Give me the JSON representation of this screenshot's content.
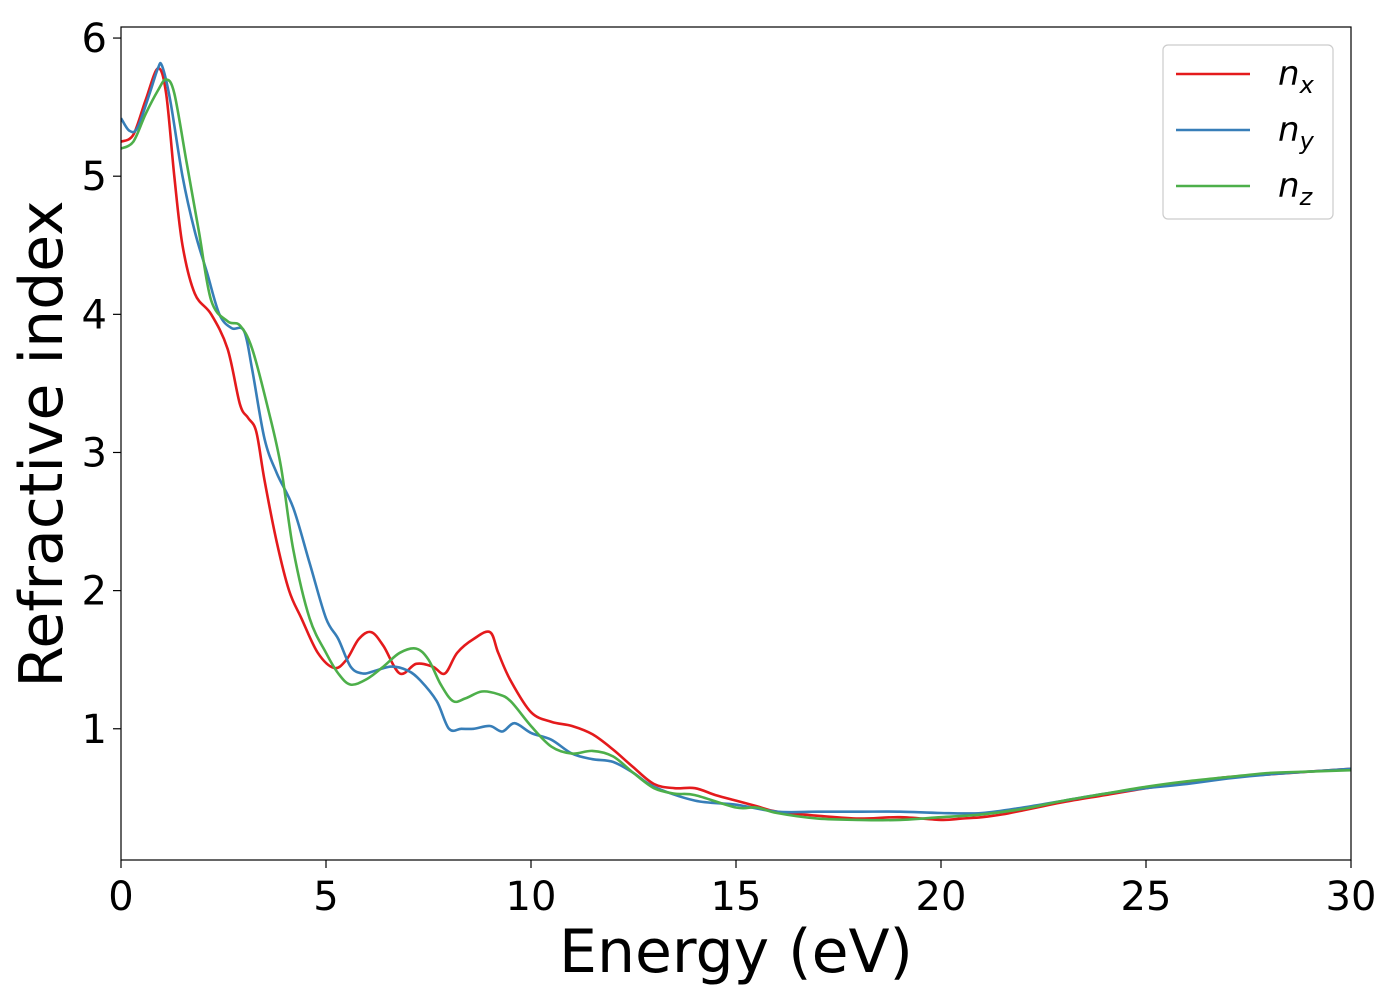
{
  "chart_data": {
    "type": "line",
    "title": "",
    "xlabel": "Energy (eV)",
    "ylabel": "Refractive index",
    "xlim": [
      0,
      30
    ],
    "ylim": [
      0.05,
      6.08
    ],
    "xticks": [
      0,
      5,
      10,
      15,
      20,
      25,
      30
    ],
    "yticks": [
      1,
      2,
      3,
      4,
      5,
      6
    ],
    "grid": false,
    "legend_position": "top-right",
    "series": [
      {
        "name": "n",
        "subscript": "x",
        "color": "#e41a1c",
        "x": [
          0,
          0.3,
          0.6,
          0.9,
          1.1,
          1.3,
          1.5,
          1.8,
          2.2,
          2.6,
          2.9,
          3.1,
          3.3,
          3.5,
          3.8,
          4.1,
          4.4,
          4.8,
          5.2,
          5.5,
          5.8,
          6.1,
          6.4,
          6.8,
          7.2,
          7.6,
          7.9,
          8.2,
          8.6,
          9.0,
          9.2,
          9.5,
          10.0,
          10.5,
          11.0,
          11.5,
          12.0,
          12.5,
          13.0,
          13.5,
          14.0,
          14.5,
          15.0,
          15.5,
          16.0,
          17.0,
          18.0,
          19.0,
          20.0,
          20.5,
          21.0,
          21.5,
          22.0,
          22.5,
          23.0,
          24.0,
          25.0,
          26.0,
          27.0,
          28.0,
          29.0,
          30.0
        ],
        "y": [
          5.25,
          5.3,
          5.55,
          5.78,
          5.6,
          5.0,
          4.5,
          4.15,
          4.0,
          3.75,
          3.35,
          3.25,
          3.15,
          2.8,
          2.35,
          2.0,
          1.8,
          1.55,
          1.44,
          1.5,
          1.65,
          1.7,
          1.6,
          1.4,
          1.47,
          1.45,
          1.4,
          1.55,
          1.65,
          1.7,
          1.55,
          1.35,
          1.12,
          1.05,
          1.02,
          0.96,
          0.85,
          0.72,
          0.6,
          0.57,
          0.57,
          0.52,
          0.48,
          0.44,
          0.4,
          0.37,
          0.35,
          0.36,
          0.34,
          0.35,
          0.36,
          0.38,
          0.41,
          0.44,
          0.47,
          0.52,
          0.57,
          0.61,
          0.65,
          0.67,
          0.69,
          0.71
        ]
      },
      {
        "name": "n",
        "subscript": "y",
        "color": "#377eb8",
        "x": [
          0,
          0.2,
          0.4,
          0.7,
          0.9,
          1.0,
          1.2,
          1.5,
          1.8,
          2.1,
          2.4,
          2.7,
          3.0,
          3.2,
          3.5,
          3.8,
          4.2,
          4.6,
          5.0,
          5.3,
          5.6,
          5.9,
          6.2,
          6.6,
          7.0,
          7.3,
          7.7,
          8.0,
          8.3,
          8.6,
          9.0,
          9.3,
          9.6,
          10.0,
          10.5,
          11.0,
          11.5,
          12.0,
          12.5,
          13.0,
          14.0,
          15.0,
          16.0,
          17.0,
          18.0,
          19.0,
          20.0,
          21.0,
          22.0,
          23.0,
          24.0,
          25.0,
          26.0,
          27.0,
          28.0,
          29.0,
          30.0
        ],
        "y": [
          5.42,
          5.33,
          5.35,
          5.6,
          5.78,
          5.8,
          5.55,
          5.0,
          4.6,
          4.3,
          4.0,
          3.9,
          3.88,
          3.6,
          3.1,
          2.85,
          2.6,
          2.2,
          1.8,
          1.65,
          1.45,
          1.4,
          1.42,
          1.45,
          1.42,
          1.35,
          1.2,
          1.0,
          1.0,
          1.0,
          1.02,
          0.98,
          1.04,
          0.97,
          0.92,
          0.82,
          0.78,
          0.76,
          0.68,
          0.58,
          0.48,
          0.45,
          0.4,
          0.4,
          0.4,
          0.4,
          0.39,
          0.39,
          0.43,
          0.48,
          0.53,
          0.57,
          0.6,
          0.64,
          0.67,
          0.69,
          0.71
        ]
      },
      {
        "name": "n",
        "subscript": "z",
        "color": "#4daf4a",
        "x": [
          0,
          0.3,
          0.6,
          0.9,
          1.1,
          1.3,
          1.6,
          1.9,
          2.2,
          2.6,
          2.9,
          3.2,
          3.6,
          3.9,
          4.2,
          4.6,
          5.0,
          5.3,
          5.6,
          6.0,
          6.4,
          6.8,
          7.2,
          7.5,
          7.8,
          8.1,
          8.4,
          8.8,
          9.2,
          9.5,
          10.0,
          10.5,
          11.0,
          11.5,
          12.0,
          12.5,
          13.0,
          13.5,
          14.0,
          15.0,
          15.5,
          16.0,
          17.0,
          18.0,
          19.0,
          20.0,
          21.0,
          22.0,
          23.0,
          24.0,
          25.0,
          26.0,
          27.0,
          28.0,
          29.0,
          30.0
        ],
        "y": [
          5.2,
          5.25,
          5.45,
          5.62,
          5.7,
          5.6,
          5.1,
          4.6,
          4.1,
          3.95,
          3.92,
          3.75,
          3.3,
          2.9,
          2.3,
          1.8,
          1.55,
          1.4,
          1.32,
          1.36,
          1.45,
          1.55,
          1.58,
          1.5,
          1.32,
          1.2,
          1.22,
          1.27,
          1.25,
          1.2,
          1.02,
          0.87,
          0.82,
          0.84,
          0.8,
          0.68,
          0.57,
          0.53,
          0.52,
          0.43,
          0.43,
          0.39,
          0.35,
          0.34,
          0.34,
          0.36,
          0.38,
          0.42,
          0.48,
          0.53,
          0.58,
          0.62,
          0.65,
          0.68,
          0.69,
          0.7
        ]
      }
    ]
  }
}
